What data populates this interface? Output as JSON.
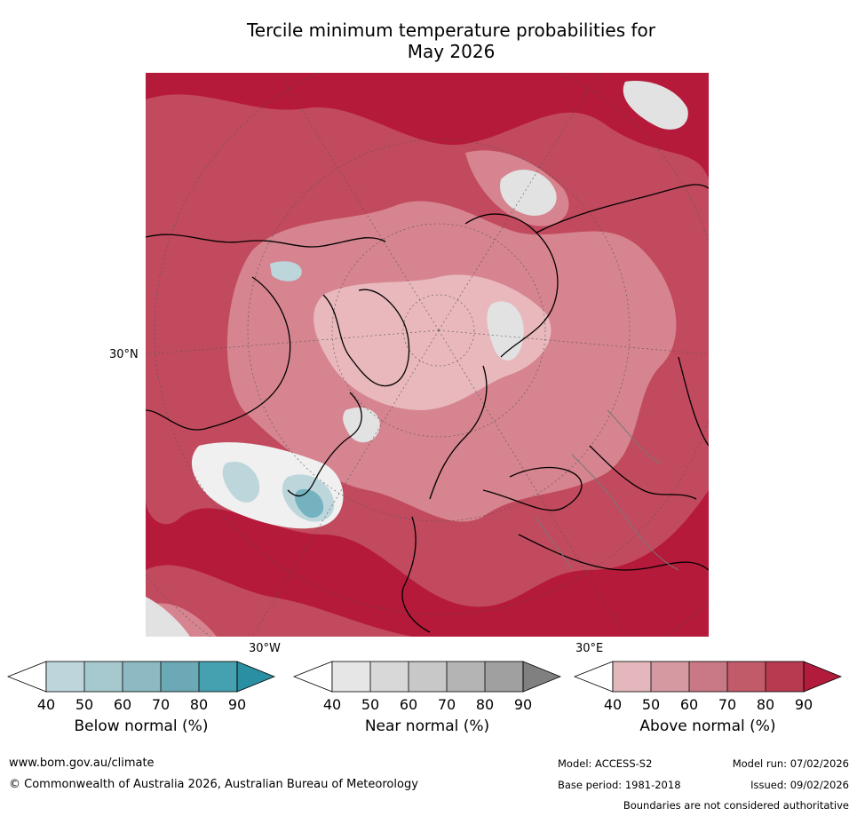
{
  "title": {
    "line1": "Tercile minimum temperature probabilities for",
    "line2": "May 2026"
  },
  "map": {
    "lat_label": "30°N",
    "lon_label_left": "30°W",
    "lon_label_right": "30°E",
    "colors": {
      "above_dark": "#b51a3a",
      "above_mid": "#c24a5e",
      "above_light": "#d6848f",
      "above_pale": "#e8b8bd",
      "near": "#e2e2e2",
      "below_light": "#bcd6dc",
      "below_mid": "#73b2be"
    }
  },
  "colorbars": [
    {
      "label": "Below normal (%)",
      "ticks": [
        "40",
        "50",
        "60",
        "70",
        "80",
        "90"
      ],
      "colors": [
        "#ffffff",
        "#bdd5db",
        "#a6c9cf",
        "#8dbac2",
        "#6aa9b5",
        "#45a0af",
        "#2a8fa3"
      ]
    },
    {
      "label": "Near normal (%)",
      "ticks": [
        "40",
        "50",
        "60",
        "70",
        "80",
        "90"
      ],
      "colors": [
        "#ffffff",
        "#e6e6e6",
        "#d8d8d8",
        "#c8c8c8",
        "#b4b4b4",
        "#a0a0a0",
        "#808080"
      ]
    },
    {
      "label": "Above normal (%)",
      "ticks": [
        "40",
        "50",
        "60",
        "70",
        "80",
        "90"
      ],
      "colors": [
        "#ffffff",
        "#e3b7bb",
        "#d59aa1",
        "#c97885",
        "#c15a69",
        "#b83a50",
        "#b21b3b"
      ]
    }
  ],
  "footer": {
    "website": "www.bom.gov.au/climate",
    "copyright": "© Commonwealth of Australia 2026, Australian Bureau of Meteorology",
    "model": "Model: ACCESS-S2",
    "base_period": "Base period: 1981-2018",
    "model_run": "Model run: 07/02/2026",
    "issued": "Issued: 09/02/2026",
    "disclaimer": "Boundaries are not considered authoritative"
  }
}
